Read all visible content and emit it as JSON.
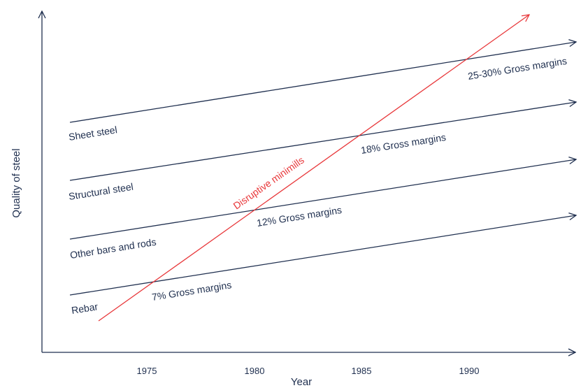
{
  "chart_data": {
    "type": "line",
    "xlabel": "Year",
    "ylabel": "Quality of steel",
    "x_ticks": [
      1975,
      1980,
      1985,
      1990
    ],
    "colors": {
      "segments": "#1f2f4f",
      "disruptor": "#e8373a"
    },
    "segments": [
      {
        "name": "Rebar",
        "margin_label": "7% Gross margins"
      },
      {
        "name": "Other bars and rods",
        "margin_label": "12% Gross margins"
      },
      {
        "name": "Structural steel",
        "margin_label": "18% Gross margins"
      },
      {
        "name": "Sheet steel",
        "margin_label": "25-30% Gross margins"
      }
    ],
    "disruptor": {
      "name": "Disruptive minimills"
    }
  }
}
